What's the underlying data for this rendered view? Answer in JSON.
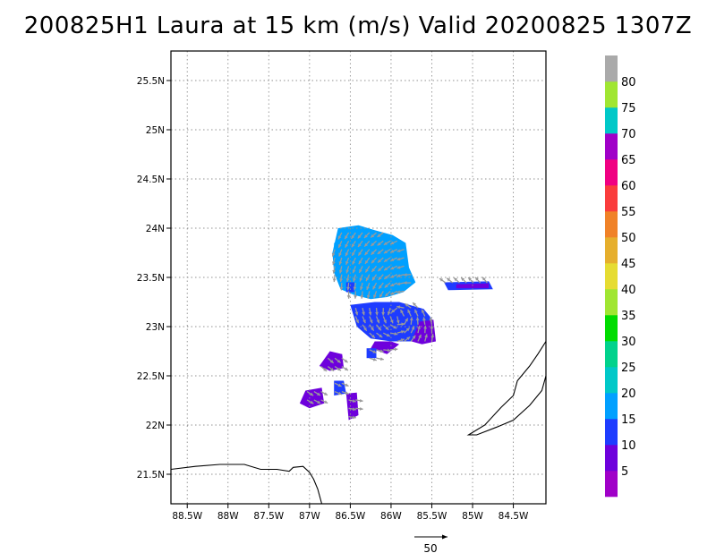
{
  "title": "200825H1 Laura at 15 km (m/s) Valid 20200825 1307Z",
  "map": {
    "lon_min": -88.7,
    "lon_max": -84.1,
    "lat_min": 21.2,
    "lat_max": 25.8,
    "x_ticks": [
      {
        "lon": -88.5,
        "label": "88.5W"
      },
      {
        "lon": -88.0,
        "label": "88W"
      },
      {
        "lon": -87.5,
        "label": "87.5W"
      },
      {
        "lon": -87.0,
        "label": "87W"
      },
      {
        "lon": -86.5,
        "label": "86.5W"
      },
      {
        "lon": -86.0,
        "label": "86W"
      },
      {
        "lon": -85.5,
        "label": "85.5W"
      },
      {
        "lon": -85.0,
        "label": "85W"
      },
      {
        "lon": -84.5,
        "label": "84.5W"
      }
    ],
    "y_ticks": [
      {
        "lat": 21.5,
        "label": "21.5N"
      },
      {
        "lat": 22.0,
        "label": "22N"
      },
      {
        "lat": 22.5,
        "label": "22.5N"
      },
      {
        "lat": 23.0,
        "label": "23N"
      },
      {
        "lat": 23.5,
        "label": "23.5N"
      },
      {
        "lat": 24.0,
        "label": "24N"
      },
      {
        "lat": 24.5,
        "label": "24.5N"
      },
      {
        "lat": 25.0,
        "label": "25N"
      },
      {
        "lat": 25.5,
        "label": "25.5N"
      }
    ],
    "grid": "dotted",
    "coastline_color": "#000000",
    "wind_regions": [
      {
        "level": 15,
        "pts": [
          [
            -86.65,
            24.0
          ],
          [
            -86.4,
            24.03
          ],
          [
            -86.2,
            23.98
          ],
          [
            -85.98,
            23.93
          ],
          [
            -85.82,
            23.85
          ],
          [
            -85.78,
            23.6
          ],
          [
            -85.7,
            23.45
          ],
          [
            -85.85,
            23.35
          ],
          [
            -86.05,
            23.3
          ],
          [
            -86.25,
            23.28
          ],
          [
            -86.45,
            23.32
          ],
          [
            -86.62,
            23.38
          ],
          [
            -86.7,
            23.55
          ],
          [
            -86.72,
            23.75
          ]
        ]
      },
      {
        "level": 10,
        "pts": [
          [
            -86.5,
            23.22
          ],
          [
            -86.2,
            23.25
          ],
          [
            -85.9,
            23.25
          ],
          [
            -85.6,
            23.18
          ],
          [
            -85.5,
            23.08
          ],
          [
            -85.5,
            22.9
          ],
          [
            -85.7,
            22.85
          ],
          [
            -86.0,
            22.85
          ],
          [
            -86.25,
            22.88
          ],
          [
            -86.42,
            23.0
          ]
        ]
      },
      {
        "level": 5,
        "pts": [
          [
            -85.65,
            23.05
          ],
          [
            -85.48,
            23.07
          ],
          [
            -85.45,
            22.85
          ],
          [
            -85.62,
            22.82
          ],
          [
            -85.75,
            22.85
          ]
        ]
      },
      {
        "level": 5,
        "pts": [
          [
            -86.2,
            22.85
          ],
          [
            -86.0,
            22.85
          ],
          [
            -85.9,
            22.82
          ],
          [
            -86.05,
            22.72
          ],
          [
            -86.25,
            22.78
          ]
        ]
      },
      {
        "level": 10,
        "pts": [
          [
            -85.35,
            23.45
          ],
          [
            -84.8,
            23.46
          ],
          [
            -84.75,
            23.38
          ],
          [
            -85.3,
            23.37
          ]
        ]
      },
      {
        "level": 5,
        "pts": [
          [
            -85.2,
            23.43
          ],
          [
            -84.8,
            23.44
          ],
          [
            -84.8,
            23.39
          ],
          [
            -85.2,
            23.39
          ]
        ]
      },
      {
        "level": 5,
        "pts": [
          [
            -86.75,
            22.75
          ],
          [
            -86.6,
            22.72
          ],
          [
            -86.58,
            22.58
          ],
          [
            -86.75,
            22.55
          ],
          [
            -86.88,
            22.6
          ]
        ]
      },
      {
        "level": 5,
        "pts": [
          [
            -87.05,
            22.35
          ],
          [
            -86.85,
            22.38
          ],
          [
            -86.82,
            22.22
          ],
          [
            -87.0,
            22.17
          ],
          [
            -87.12,
            22.22
          ]
        ]
      },
      {
        "level": 10,
        "pts": [
          [
            -86.7,
            22.45
          ],
          [
            -86.58,
            22.45
          ],
          [
            -86.55,
            22.32
          ],
          [
            -86.7,
            22.3
          ]
        ]
      },
      {
        "level": 5,
        "pts": [
          [
            -86.55,
            22.32
          ],
          [
            -86.42,
            22.33
          ],
          [
            -86.4,
            22.1
          ],
          [
            -86.52,
            22.05
          ]
        ]
      },
      {
        "level": 10,
        "pts": [
          [
            -86.3,
            22.78
          ],
          [
            -86.18,
            22.78
          ],
          [
            -86.18,
            22.68
          ],
          [
            -86.3,
            22.68
          ]
        ]
      },
      {
        "level": 15,
        "pts": [
          [
            -86.7,
            23.85
          ],
          [
            -86.6,
            23.85
          ],
          [
            -86.6,
            23.75
          ],
          [
            -86.7,
            23.75
          ]
        ]
      },
      {
        "level": 10,
        "pts": [
          [
            -86.55,
            23.45
          ],
          [
            -86.45,
            23.45
          ],
          [
            -86.45,
            23.35
          ],
          [
            -86.55,
            23.35
          ]
        ]
      }
    ],
    "coastlines": [
      [
        [
          -88.7,
          21.55
        ],
        [
          -88.4,
          21.58
        ],
        [
          -88.1,
          21.6
        ],
        [
          -87.8,
          21.6
        ],
        [
          -87.6,
          21.55
        ],
        [
          -87.4,
          21.55
        ],
        [
          -87.25,
          21.53
        ],
        [
          -87.2,
          21.57
        ],
        [
          -87.08,
          21.58
        ],
        [
          -87.0,
          21.52
        ],
        [
          -86.95,
          21.45
        ],
        [
          -86.9,
          21.35
        ],
        [
          -86.85,
          21.2
        ]
      ],
      [
        [
          -84.1,
          22.85
        ],
        [
          -84.2,
          22.72
        ],
        [
          -84.3,
          22.6
        ],
        [
          -84.45,
          22.45
        ],
        [
          -84.5,
          22.3
        ],
        [
          -84.65,
          22.18
        ],
        [
          -84.85,
          22.0
        ],
        [
          -85.05,
          21.9
        ],
        [
          -84.95,
          21.9
        ],
        [
          -84.7,
          21.98
        ],
        [
          -84.5,
          22.05
        ],
        [
          -84.3,
          22.2
        ],
        [
          -84.15,
          22.35
        ],
        [
          -84.1,
          22.5
        ]
      ]
    ]
  },
  "colorbar": {
    "labels": [
      "5",
      "10",
      "15",
      "20",
      "25",
      "30",
      "35",
      "40",
      "45",
      "50",
      "55",
      "60",
      "65",
      "70",
      "75",
      "80"
    ],
    "colors": [
      "#a000c8",
      "#6e00dc",
      "#1e3cff",
      "#00a0ff",
      "#00c8c8",
      "#00d28c",
      "#00dc00",
      "#a0e632",
      "#e6dc32",
      "#e6af2d",
      "#f08228",
      "#fa3c3c",
      "#f00082",
      "#a000c8",
      "#00c8c8",
      "#a0e632",
      "#aaaaaa"
    ]
  },
  "reference_vector": {
    "label": "50"
  }
}
